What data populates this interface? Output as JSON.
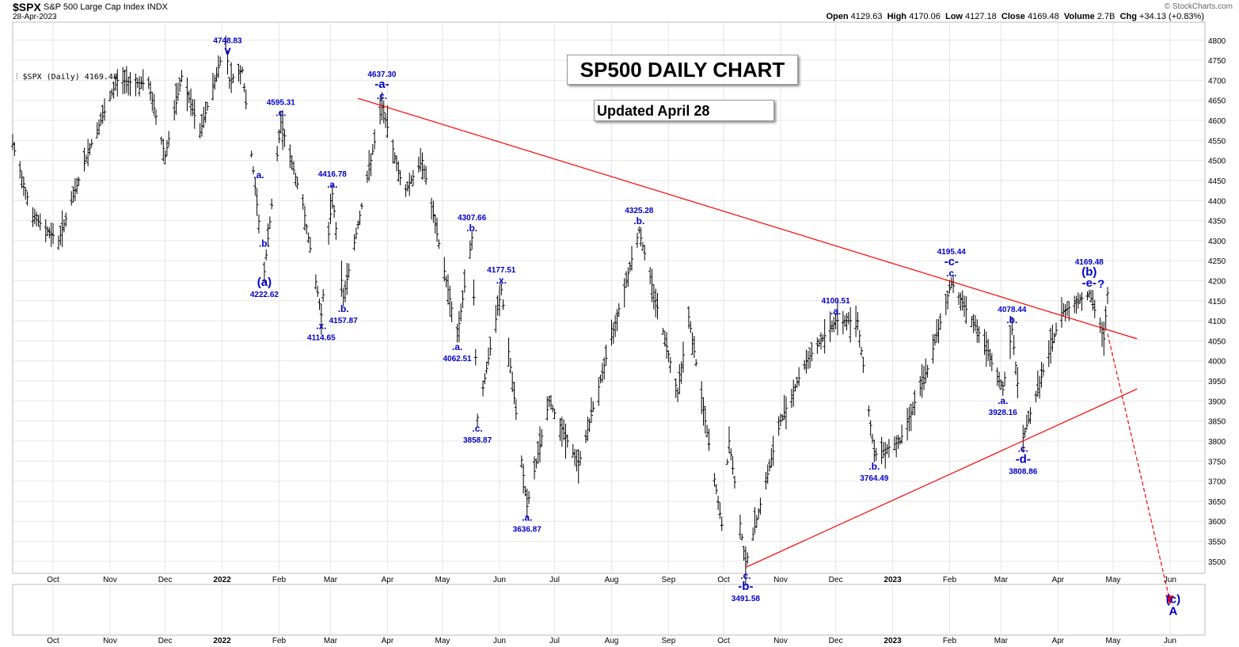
{
  "header": {
    "ticker": "$SPX",
    "description": "S&P 500 Large Cap Index",
    "exchange": "INDX",
    "date": "28-Apr-2023",
    "credit": "© StockCharts.com",
    "open_label": "Open",
    "open": "4129.63",
    "high_label": "High",
    "high": "4170.06",
    "low_label": "Low",
    "low": "4127.18",
    "close_label": "Close",
    "close": "4169.48",
    "volume_label": "Volume",
    "volume": "2.7B",
    "chg_label": "Chg",
    "chg": "+34.13 (+0.83%)"
  },
  "title": "SP500 DAILY CHART",
  "subtitle": "Updated April 28",
  "legend": "$SPX (Daily) 4169.48",
  "colors": {
    "price_bars": "#000000",
    "trendline": "#ff0000",
    "wave_labels": "#0000cc",
    "grid": "#e6e6e6"
  },
  "chart_data": {
    "type": "line",
    "subtype": "ohlc-bar",
    "series": [
      {
        "name": "$SPX (Daily)"
      }
    ],
    "x_start": "2021-09-09",
    "x_end": "2023-06-20",
    "x_ticks": [
      {
        "date": "2021-10-01",
        "label": "Oct"
      },
      {
        "date": "2021-11-01",
        "label": "Nov"
      },
      {
        "date": "2021-12-01",
        "label": "Dec"
      },
      {
        "date": "2022-01-01",
        "label": "2022"
      },
      {
        "date": "2022-02-01",
        "label": "Feb"
      },
      {
        "date": "2022-03-01",
        "label": "Mar"
      },
      {
        "date": "2022-04-01",
        "label": "Apr"
      },
      {
        "date": "2022-05-01",
        "label": "May"
      },
      {
        "date": "2022-06-01",
        "label": "Jun"
      },
      {
        "date": "2022-07-01",
        "label": "Jul"
      },
      {
        "date": "2022-08-01",
        "label": "Aug"
      },
      {
        "date": "2022-09-01",
        "label": "Sep"
      },
      {
        "date": "2022-10-01",
        "label": "Oct"
      },
      {
        "date": "2022-11-01",
        "label": "Nov"
      },
      {
        "date": "2022-12-01",
        "label": "Dec"
      },
      {
        "date": "2023-01-01",
        "label": "2023"
      },
      {
        "date": "2023-02-01",
        "label": "Feb"
      },
      {
        "date": "2023-03-01",
        "label": "Mar"
      },
      {
        "date": "2023-04-01",
        "label": "Apr"
      },
      {
        "date": "2023-05-01",
        "label": "May"
      },
      {
        "date": "2023-06-01",
        "label": "Jun"
      }
    ],
    "y_ticks": [
      3500,
      3550,
      3600,
      3650,
      3700,
      3750,
      3800,
      3850,
      3900,
      3950,
      4000,
      4050,
      4100,
      4150,
      4200,
      4250,
      4300,
      4350,
      4400,
      4450,
      4500,
      4550,
      4600,
      4650,
      4700,
      4750,
      4800
    ],
    "ylim": [
      3470,
      4845
    ],
    "grid": true,
    "legend_position": "top-left",
    "price_path": [
      [
        "2021-09-09",
        4540
      ],
      [
        "2021-09-20",
        4360
      ],
      [
        "2021-10-04",
        4300
      ],
      [
        "2021-10-20",
        4520
      ],
      [
        "2021-11-05",
        4700
      ],
      [
        "2021-11-22",
        4690
      ],
      [
        "2021-12-01",
        4510
      ],
      [
        "2021-12-10",
        4710
      ],
      [
        "2021-12-20",
        4570
      ],
      [
        "2022-01-03",
        4796
      ],
      [
        "2022-01-05",
        4700
      ],
      [
        "2022-01-12",
        4725
      ],
      [
        "2022-01-24",
        4222.62
      ],
      [
        "2022-02-02",
        4595.31
      ],
      [
        "2022-02-14",
        4390
      ],
      [
        "2022-02-24",
        4114.65
      ],
      [
        "2022-03-02",
        4416.78
      ],
      [
        "2022-03-08",
        4157.87
      ],
      [
        "2022-03-29",
        4637.3
      ],
      [
        "2022-04-10",
        4420
      ],
      [
        "2022-04-20",
        4500
      ],
      [
        "2022-05-09",
        4062.51
      ],
      [
        "2022-05-17",
        4307.66
      ],
      [
        "2022-05-20",
        3858.87
      ],
      [
        "2022-06-02",
        4177.51
      ],
      [
        "2022-06-16",
        3636.87
      ],
      [
        "2022-06-28",
        3900
      ],
      [
        "2022-07-14",
        3740
      ],
      [
        "2022-08-16",
        4325.28
      ],
      [
        "2022-09-06",
        3920
      ],
      [
        "2022-09-12",
        4110
      ],
      [
        "2022-09-30",
        3590
      ],
      [
        "2022-10-04",
        3800
      ],
      [
        "2022-10-13",
        3491.58
      ],
      [
        "2022-11-01",
        3850
      ],
      [
        "2022-11-15",
        4000
      ],
      [
        "2022-12-01",
        4100.51
      ],
      [
        "2022-12-13",
        4100
      ],
      [
        "2022-12-22",
        3764.49
      ],
      [
        "2023-01-05",
        3800
      ],
      [
        "2023-01-20",
        3980
      ],
      [
        "2023-02-02",
        4195.44
      ],
      [
        "2023-02-17",
        4070
      ],
      [
        "2023-03-02",
        3928.16
      ],
      [
        "2023-03-07",
        4078.44
      ],
      [
        "2023-03-13",
        3808.86
      ],
      [
        "2023-03-23",
        3960
      ],
      [
        "2023-04-03",
        4120
      ],
      [
        "2023-04-18",
        4169.48
      ],
      [
        "2023-04-26",
        4055
      ],
      [
        "2023-04-28",
        4169.48
      ]
    ],
    "annotations": [
      {
        "date": "2022-01-04",
        "price": 4748.83,
        "lines": [
          "4748.83",
          "v"
        ],
        "pos": "above"
      },
      {
        "date": "2022-01-24",
        "price": 4222.62,
        "lines": [
          "(a)",
          "4222.62"
        ],
        "pos": "below"
      },
      {
        "date": "2022-01-21",
        "price": 4440,
        "lines": [
          ".a."
        ],
        "pos": "above"
      },
      {
        "date": "2022-01-24",
        "price": 4320,
        "lines": [
          ".b."
        ],
        "pos": "below"
      },
      {
        "date": "2022-02-02",
        "price": 4595.31,
        "lines": [
          "4595.31",
          ".c."
        ],
        "pos": "above"
      },
      {
        "date": "2022-02-24",
        "price": 4114.65,
        "lines": [
          ".x.",
          "4114.65"
        ],
        "pos": "below"
      },
      {
        "date": "2022-03-02",
        "price": 4416.78,
        "lines": [
          "4416.78",
          ".a."
        ],
        "pos": "above"
      },
      {
        "date": "2022-03-08",
        "price": 4157.87,
        "lines": [
          ".b.",
          "4157.87"
        ],
        "pos": "below"
      },
      {
        "date": "2022-03-29",
        "price": 4637.3,
        "lines": [
          "4637.30",
          "-a-",
          ".c."
        ],
        "pos": "above"
      },
      {
        "date": "2022-05-09",
        "price": 4062.51,
        "lines": [
          ".a.",
          "4062.51"
        ],
        "pos": "below"
      },
      {
        "date": "2022-05-17",
        "price": 4307.66,
        "lines": [
          "4307.66",
          ".b."
        ],
        "pos": "above"
      },
      {
        "date": "2022-05-20",
        "price": 3858.87,
        "lines": [
          ".c.",
          "3858.87"
        ],
        "pos": "below"
      },
      {
        "date": "2022-06-02",
        "price": 4177.51,
        "lines": [
          "4177.51",
          ".x."
        ],
        "pos": "above"
      },
      {
        "date": "2022-06-16",
        "price": 3636.87,
        "lines": [
          ".a.",
          "3636.87"
        ],
        "pos": "below"
      },
      {
        "date": "2022-08-16",
        "price": 4325.28,
        "lines": [
          "4325.28",
          ".b."
        ],
        "pos": "above"
      },
      {
        "date": "2022-10-13",
        "price": 3491.58,
        "lines": [
          ".c.",
          "-b-",
          "3491.58"
        ],
        "pos": "below"
      },
      {
        "date": "2022-12-01",
        "price": 4100.51,
        "lines": [
          "4100.51",
          ".a."
        ],
        "pos": "above"
      },
      {
        "date": "2022-12-22",
        "price": 3764.49,
        "lines": [
          ".b.",
          "3764.49"
        ],
        "pos": "below"
      },
      {
        "date": "2023-02-02",
        "price": 4195.44,
        "lines": [
          "4195.44",
          "-c-",
          ".c."
        ],
        "pos": "above"
      },
      {
        "date": "2023-03-02",
        "price": 3928.16,
        "lines": [
          ".a.",
          "3928.16"
        ],
        "pos": "below"
      },
      {
        "date": "2023-03-07",
        "price": 4078.44,
        "lines": [
          "4078.44",
          ".b."
        ],
        "pos": "above"
      },
      {
        "date": "2023-03-13",
        "price": 3808.86,
        "lines": [
          ".c.",
          "-d-",
          "3808.86"
        ],
        "pos": "below"
      },
      {
        "date": "2023-04-18",
        "price": 4169.48,
        "lines": [
          "4169.48",
          "(b)",
          "-e-"
        ],
        "pos": "above"
      },
      {
        "date": "2023-04-19",
        "price": 4190,
        "lines": [
          "?"
        ],
        "pos": "right"
      }
    ],
    "target_label": [
      "(c)",
      "A"
    ],
    "trendlines": [
      {
        "from": [
          "2022-03-16",
          4655
        ],
        "to": [
          "2023-05-14",
          4055
        ]
      },
      {
        "from": [
          "2022-10-13",
          3485
        ],
        "to": [
          "2023-05-14",
          3930
        ]
      }
    ],
    "projection": {
      "from": [
        "2023-04-28",
        4068
      ],
      "to": [
        "2023-06-01",
        3400
      ]
    }
  }
}
